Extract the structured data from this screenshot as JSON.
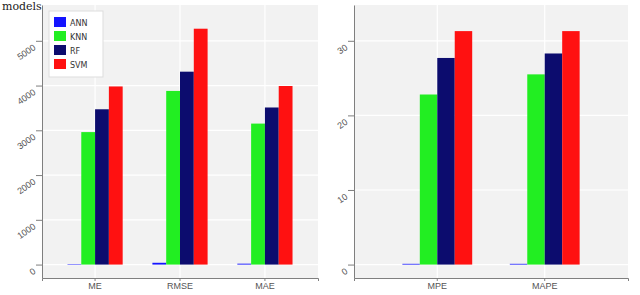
{
  "caption": "models.",
  "chart_data": [
    {
      "type": "bar",
      "categories": [
        "ME",
        "RMSE",
        "MAE"
      ],
      "series": [
        {
          "name": "ANN",
          "color": "#1414ff",
          "values": [
            10,
            40,
            20
          ]
        },
        {
          "name": "KNN",
          "color": "#22ee22",
          "values": [
            2960,
            3880,
            3150
          ]
        },
        {
          "name": "RF",
          "color": "#0c0c6e",
          "values": [
            3470,
            4310,
            3510
          ]
        },
        {
          "name": "SVM",
          "color": "#ff1111",
          "values": [
            3980,
            5270,
            3990
          ]
        }
      ],
      "ylim": [
        -300,
        5800
      ],
      "yticks": [
        0,
        1000,
        2000,
        3000,
        4000,
        5000
      ],
      "grid": true,
      "legend": "top-left"
    },
    {
      "type": "bar",
      "categories": [
        "MPE",
        "MAPE"
      ],
      "series": [
        {
          "color": "#1414ff",
          "values": [
            0.1,
            0.1
          ]
        },
        {
          "color": "#22ee22",
          "values": [
            22.8,
            25.5
          ]
        },
        {
          "color": "#0c0c6e",
          "values": [
            27.7,
            28.3
          ]
        },
        {
          "color": "#ff1111",
          "values": [
            31.3,
            31.3
          ]
        }
      ],
      "ylim": [
        -1.8,
        34.8
      ],
      "yticks": [
        0,
        10,
        20,
        30
      ],
      "grid": true
    }
  ]
}
